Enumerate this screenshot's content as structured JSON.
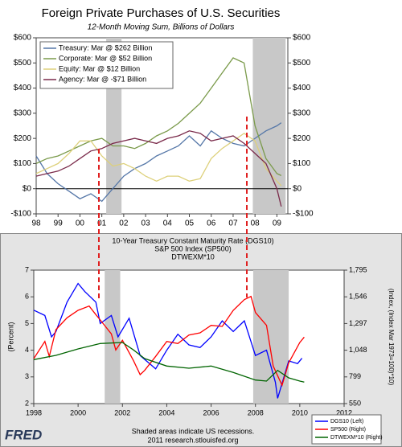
{
  "chart_data": [
    {
      "type": "line",
      "title": "Foreign Private Purchases of U.S. Securities",
      "subtitle": "12-Month Moving Sum, Billions of Dollars",
      "xlim": [
        1998,
        2009.5
      ],
      "xticks": [
        {
          "value": 1998,
          "label": "98"
        },
        {
          "value": 1999,
          "label": "99"
        },
        {
          "value": 2000,
          "label": "00"
        },
        {
          "value": 2001,
          "label": "01"
        },
        {
          "value": 2002,
          "label": "02"
        },
        {
          "value": 2003,
          "label": "03"
        },
        {
          "value": 2004,
          "label": "04"
        },
        {
          "value": 2005,
          "label": "05"
        },
        {
          "value": 2006,
          "label": "06"
        },
        {
          "value": 2007,
          "label": "07"
        },
        {
          "value": 2008,
          "label": "08"
        },
        {
          "value": 2009,
          "label": "09"
        }
      ],
      "ylim": [
        -100,
        600
      ],
      "yticks": [
        {
          "value": 600,
          "label": "$600"
        },
        {
          "value": 500,
          "label": "$500"
        },
        {
          "value": 400,
          "label": "$400"
        },
        {
          "value": 300,
          "label": "$300"
        },
        {
          "value": 200,
          "label": "$200"
        },
        {
          "value": 100,
          "label": "$100"
        },
        {
          "value": 0,
          "label": "$0"
        },
        {
          "value": -100,
          "label": "-$100"
        }
      ],
      "recessions": [
        [
          2001.2,
          2001.9
        ],
        [
          2007.9,
          2009.4
        ]
      ],
      "legend": "upper left",
      "series": [
        {
          "name": "Treasury: Mar @ $262 Billion",
          "color": "#5577a8",
          "x": [
            1998,
            1998.5,
            1999,
            1999.5,
            2000,
            2000.5,
            2001,
            2001.5,
            2002,
            2002.5,
            2003,
            2003.5,
            2004,
            2004.5,
            2005,
            2005.5,
            2006,
            2006.5,
            2007,
            2007.5,
            2008,
            2008.5,
            2009,
            2009.2
          ],
          "values": [
            130,
            60,
            20,
            -10,
            -40,
            -20,
            -50,
            0,
            50,
            80,
            100,
            130,
            150,
            170,
            210,
            170,
            230,
            200,
            180,
            170,
            200,
            230,
            250,
            262
          ]
        },
        {
          "name": "Corporate: Mar @ $52 Billion",
          "color": "#7a9a4a",
          "x": [
            1998,
            1998.5,
            1999,
            1999.5,
            2000,
            2000.5,
            2001,
            2001.5,
            2002,
            2002.5,
            2003,
            2003.5,
            2004,
            2004.5,
            2005,
            2005.5,
            2006,
            2006.5,
            2007,
            2007.5,
            2008,
            2008.5,
            2009,
            2009.2
          ],
          "values": [
            100,
            120,
            130,
            150,
            170,
            190,
            200,
            170,
            170,
            160,
            180,
            210,
            230,
            260,
            300,
            340,
            400,
            460,
            520,
            500,
            250,
            120,
            60,
            52
          ]
        },
        {
          "name": "Equity: Mar @ $12 Billion",
          "color": "#ddd07a",
          "x": [
            1998,
            1998.5,
            1999,
            1999.5,
            2000,
            2000.5,
            2001,
            2001.5,
            2002,
            2002.5,
            2003,
            2003.5,
            2004,
            2004.5,
            2005,
            2005.5,
            2006,
            2006.5,
            2007,
            2007.5,
            2008,
            2008.5,
            2009,
            2009.2
          ],
          "values": [
            60,
            80,
            100,
            140,
            190,
            190,
            130,
            90,
            100,
            80,
            50,
            30,
            50,
            50,
            30,
            40,
            120,
            160,
            190,
            220,
            190,
            80,
            30,
            12
          ]
        },
        {
          "name": "Agency: Mar @ -$71 Billion",
          "color": "#7a2a4a",
          "x": [
            1998,
            1998.5,
            1999,
            1999.5,
            2000,
            2000.5,
            2001,
            2001.5,
            2002,
            2002.5,
            2003,
            2003.5,
            2004,
            2004.5,
            2005,
            2005.5,
            2006,
            2006.5,
            2007,
            2007.5,
            2008,
            2008.5,
            2009,
            2009.2
          ],
          "values": [
            50,
            60,
            70,
            90,
            120,
            150,
            160,
            180,
            190,
            200,
            190,
            180,
            200,
            210,
            230,
            220,
            190,
            200,
            210,
            180,
            140,
            100,
            0,
            -71
          ]
        }
      ]
    },
    {
      "type": "line",
      "title_lines": [
        "10-Year Treasury Constant Maturity Rate (DGS10)",
        "S&P 500 Index (SP500)",
        "DTWEXM*10"
      ],
      "ylabel": "(Percent)",
      "y2label": "(Index, (Index Mar 1973=100)*10)",
      "xlim": [
        1998,
        2012
      ],
      "xticks": [
        1998,
        2000,
        2002,
        2004,
        2006,
        2008,
        2010,
        2012
      ],
      "ylim": [
        2,
        7
      ],
      "yticks": [
        2,
        3,
        4,
        5,
        6,
        7
      ],
      "y2lim": [
        550,
        1795
      ],
      "y2ticks": [
        550,
        799,
        {
          "value": 1048,
          "label": "1,048"
        },
        {
          "value": 1297,
          "label": "1,297"
        },
        {
          "value": 1546,
          "label": "1,546"
        },
        {
          "value": 1795,
          "label": "1,795"
        }
      ],
      "recessions": [
        [
          2001.2,
          2001.9
        ],
        [
          2007.9,
          2009.5
        ]
      ],
      "legend": "lower right",
      "series": [
        {
          "name": "DGS10 (Left)",
          "color": "#0000ff",
          "x": [
            1998,
            1998.5,
            1998.8,
            1999,
            1999.5,
            2000,
            2000.3,
            2000.8,
            2001,
            2001.5,
            2001.8,
            2002.3,
            2002.8,
            2003.5,
            2004,
            2004.5,
            2005,
            2005.5,
            2006,
            2006.5,
            2007,
            2007.5,
            2008,
            2008.5,
            2008.9,
            2009,
            2009.5,
            2009.9,
            2010.1
          ],
          "values": [
            5.5,
            5.3,
            4.5,
            4.7,
            5.8,
            6.5,
            6.2,
            5.8,
            5.0,
            5.3,
            4.5,
            5.2,
            3.8,
            3.3,
            4.0,
            4.6,
            4.2,
            4.1,
            4.5,
            5.1,
            4.7,
            5.1,
            3.8,
            4.0,
            2.8,
            2.2,
            3.6,
            3.5,
            3.7
          ]
        },
        {
          "name": "SP500 (Right)",
          "color": "#ff0000",
          "axis": "y2",
          "x": [
            1998,
            1998.5,
            1998.7,
            1999,
            1999.5,
            2000,
            2000.5,
            2000.8,
            2001,
            2001.5,
            2001.7,
            2002,
            2002.5,
            2002.8,
            2003,
            2003.5,
            2004,
            2004.5,
            2005,
            2005.5,
            2006,
            2006.5,
            2007,
            2007.5,
            2007.8,
            2008,
            2008.5,
            2008.8,
            2009.2,
            2009.5,
            2010,
            2010.2
          ],
          "values": [
            970,
            1130,
            990,
            1240,
            1350,
            1420,
            1460,
            1380,
            1330,
            1200,
            1050,
            1140,
            950,
            820,
            860,
            990,
            1130,
            1110,
            1190,
            1210,
            1280,
            1270,
            1420,
            1520,
            1550,
            1400,
            1280,
            900,
            720,
            930,
            1120,
            1170
          ]
        },
        {
          "name": "DTWEXM*10 (Right)",
          "color": "#006400",
          "axis": "y2",
          "x": [
            1998,
            1999,
            2000,
            2001,
            2002,
            2002.5,
            2003,
            2004,
            2005,
            2006,
            2007,
            2008,
            2008.5,
            2009,
            2009.5,
            2010,
            2010.2
          ],
          "values": [
            960,
            1000,
            1060,
            1110,
            1120,
            1050,
            970,
            900,
            880,
            900,
            840,
            770,
            760,
            860,
            790,
            760,
            750
          ]
        }
      ],
      "notes": [
        "Shaded areas indicate US recessions.",
        "2011 research.stlouisfed.org"
      ],
      "logo": "FRED"
    }
  ]
}
